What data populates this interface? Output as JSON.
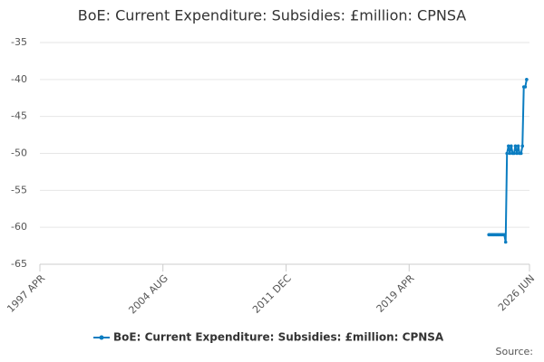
{
  "chart_data": {
    "type": "line",
    "title": "BoE: Current Expenditure: Subsidies: £million: CPNSA",
    "source": "Source:",
    "x": [
      2024.0,
      2024.08,
      2024.17,
      2024.25,
      2024.33,
      2024.42,
      2024.5,
      2024.58,
      2024.67,
      2024.75,
      2024.83,
      2024.92,
      2025.0,
      2025.08,
      2025.17,
      2025.25,
      2025.33,
      2025.42,
      2025.5,
      2025.58,
      2025.67,
      2025.75,
      2025.83,
      2025.92,
      2026.0,
      2026.08,
      2026.17,
      2026.25
    ],
    "series": [
      {
        "name": "BoE: Current Expenditure: Subsidies: £million: CPNSA",
        "color": "#0b7dc1",
        "values": [
          -61,
          -61,
          -61,
          -61,
          -61,
          -61,
          -61,
          -61,
          -61,
          -61,
          -61,
          -61,
          -62,
          -50,
          -49,
          -50,
          -49,
          -50,
          -50,
          -49,
          -50,
          -49,
          -50,
          -50,
          -49,
          -41,
          -41,
          -40
        ]
      }
    ],
    "xlim": [
      1997.25,
      2026.42
    ],
    "xticks": [
      {
        "value": 1997.25,
        "label": "1997 APR"
      },
      {
        "value": 2004.58,
        "label": "2004 AUG"
      },
      {
        "value": 2011.92,
        "label": "2011 DEC"
      },
      {
        "value": 2019.25,
        "label": "2019 APR"
      },
      {
        "value": 2026.42,
        "label": "2026 JUN"
      }
    ],
    "ylim": [
      -65,
      -35
    ],
    "yticks": [
      -65,
      -60,
      -55,
      -50,
      -45,
      -40,
      -35
    ],
    "grid": true,
    "legend": "bottom"
  }
}
